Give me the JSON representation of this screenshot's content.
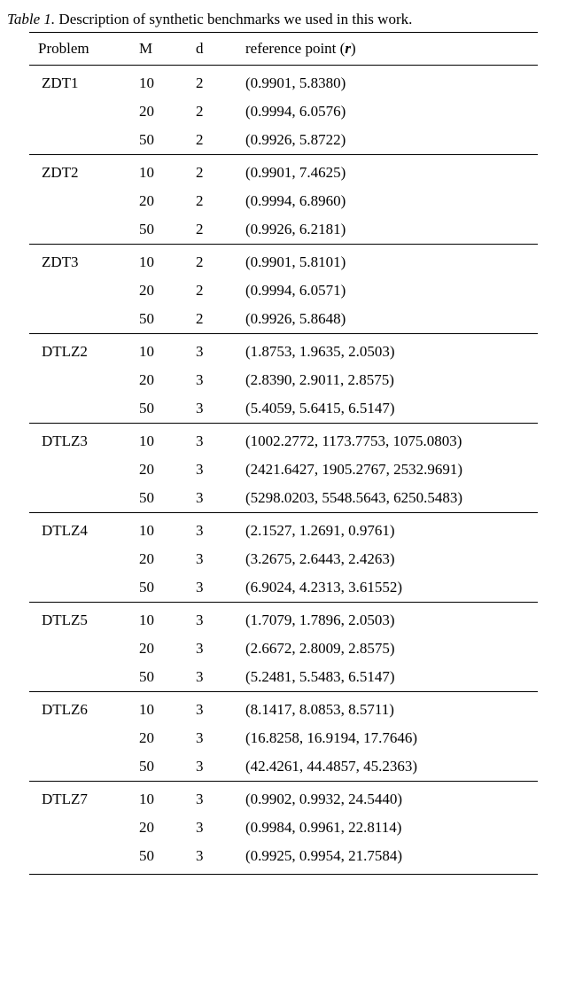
{
  "caption": {
    "label": "Table 1.",
    "text": "Description of synthetic benchmarks we used in this work."
  },
  "headers": {
    "problem": "Problem",
    "M": "M",
    "d": "d",
    "ref_prefix": "reference point (",
    "ref_var": "r",
    "ref_suffix": ")"
  },
  "groups": [
    {
      "problem": "ZDT1",
      "rows": [
        {
          "M": "10",
          "d": "2",
          "ref": "(0.9901, 5.8380)"
        },
        {
          "M": "20",
          "d": "2",
          "ref": "(0.9994, 6.0576)"
        },
        {
          "M": "50",
          "d": "2",
          "ref": "(0.9926, 5.8722)"
        }
      ]
    },
    {
      "problem": "ZDT2",
      "rows": [
        {
          "M": "10",
          "d": "2",
          "ref": "(0.9901, 7.4625)"
        },
        {
          "M": "20",
          "d": "2",
          "ref": "(0.9994, 6.8960)"
        },
        {
          "M": "50",
          "d": "2",
          "ref": "(0.9926, 6.2181)"
        }
      ]
    },
    {
      "problem": "ZDT3",
      "rows": [
        {
          "M": "10",
          "d": "2",
          "ref": "(0.9901, 5.8101)"
        },
        {
          "M": "20",
          "d": "2",
          "ref": "(0.9994, 6.0571)"
        },
        {
          "M": "50",
          "d": "2",
          "ref": "(0.9926, 5.8648)"
        }
      ]
    },
    {
      "problem": "DTLZ2",
      "rows": [
        {
          "M": "10",
          "d": "3",
          "ref": "(1.8753, 1.9635, 2.0503)"
        },
        {
          "M": "20",
          "d": "3",
          "ref": "(2.8390, 2.9011, 2.8575)"
        },
        {
          "M": "50",
          "d": "3",
          "ref": "(5.4059, 5.6415, 6.5147)"
        }
      ]
    },
    {
      "problem": "DTLZ3",
      "rows": [
        {
          "M": "10",
          "d": "3",
          "ref": "(1002.2772, 1173.7753, 1075.0803)"
        },
        {
          "M": "20",
          "d": "3",
          "ref": "(2421.6427, 1905.2767, 2532.9691)"
        },
        {
          "M": "50",
          "d": "3",
          "ref": "(5298.0203, 5548.5643, 6250.5483)"
        }
      ]
    },
    {
      "problem": "DTLZ4",
      "rows": [
        {
          "M": "10",
          "d": "3",
          "ref": "(2.1527, 1.2691, 0.9761)"
        },
        {
          "M": "20",
          "d": "3",
          "ref": "(3.2675, 2.6443, 2.4263)"
        },
        {
          "M": "50",
          "d": "3",
          "ref": "(6.9024, 4.2313, 3.61552)"
        }
      ]
    },
    {
      "problem": "DTLZ5",
      "rows": [
        {
          "M": "10",
          "d": "3",
          "ref": "(1.7079, 1.7896, 2.0503)"
        },
        {
          "M": "20",
          "d": "3",
          "ref": "(2.6672, 2.8009, 2.8575)"
        },
        {
          "M": "50",
          "d": "3",
          "ref": "(5.2481, 5.5483, 6.5147)"
        }
      ]
    },
    {
      "problem": "DTLZ6",
      "rows": [
        {
          "M": "10",
          "d": "3",
          "ref": "(8.1417, 8.0853, 8.5711)"
        },
        {
          "M": "20",
          "d": "3",
          "ref": "(16.8258, 16.9194, 17.7646)"
        },
        {
          "M": "50",
          "d": "3",
          "ref": "(42.4261, 44.4857, 45.2363)"
        }
      ]
    },
    {
      "problem": "DTLZ7",
      "rows": [
        {
          "M": "10",
          "d": "3",
          "ref": "(0.9902, 0.9932, 24.5440)"
        },
        {
          "M": "20",
          "d": "3",
          "ref": "(0.9984, 0.9961, 22.8114)"
        },
        {
          "M": "50",
          "d": "3",
          "ref": "(0.9925, 0.9954, 21.7584)"
        }
      ]
    }
  ]
}
